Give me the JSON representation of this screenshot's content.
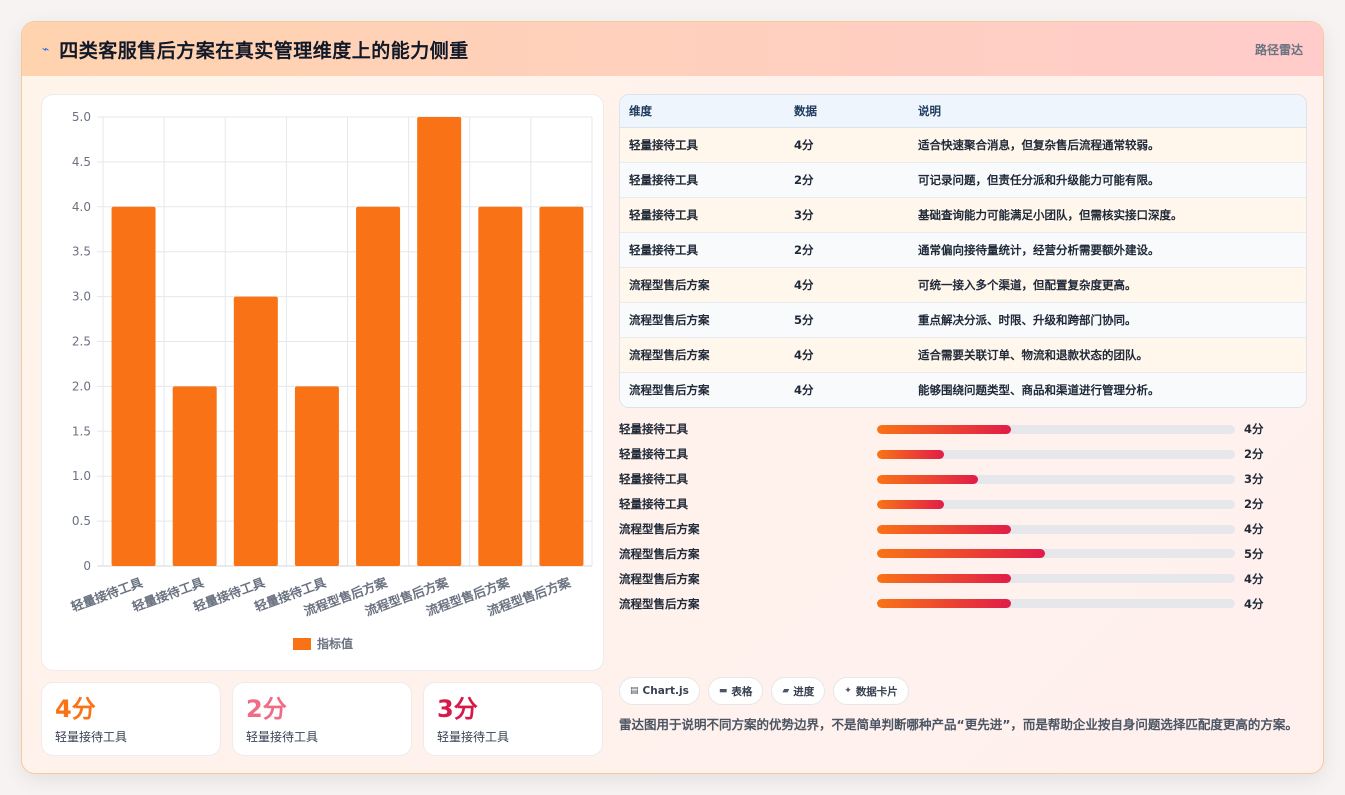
{
  "header": {
    "icon": "pulse-icon",
    "title": "四类客服售后方案在真实管理维度上的能力侧重",
    "right_label": "路径雷达"
  },
  "chart_data": {
    "type": "bar",
    "categories": [
      "轻量接待工具",
      "轻量接待工具",
      "轻量接待工具",
      "轻量接待工具",
      "流程型售后方案",
      "流程型售后方案",
      "流程型售后方案",
      "流程型售后方案"
    ],
    "series": [
      {
        "name": "指标值",
        "values": [
          4,
          2,
          3,
          2,
          4,
          5,
          4,
          4
        ],
        "color": "#f97316"
      }
    ],
    "yticks": [
      "0",
      "0.5",
      "1.0",
      "1.5",
      "2.0",
      "2.5",
      "3.0",
      "3.5",
      "4.0",
      "4.5",
      "5.0"
    ],
    "ylim": [
      0,
      5
    ],
    "grid": true,
    "legend": "bottom"
  },
  "table": {
    "headers": [
      "维度",
      "数据",
      "说明"
    ],
    "rows": [
      [
        "轻量接待工具",
        "4分",
        "适合快速聚合消息，但复杂售后流程通常较弱。"
      ],
      [
        "轻量接待工具",
        "2分",
        "可记录问题，但责任分派和升级能力可能有限。"
      ],
      [
        "轻量接待工具",
        "3分",
        "基础查询能力可能满足小团队，但需核实接口深度。"
      ],
      [
        "轻量接待工具",
        "2分",
        "通常偏向接待量统计，经营分析需要额外建设。"
      ],
      [
        "流程型售后方案",
        "4分",
        "可统一接入多个渠道，但配置复杂度更高。"
      ],
      [
        "流程型售后方案",
        "5分",
        "重点解决分派、时限、升级和跨部门协同。"
      ],
      [
        "流程型售后方案",
        "4分",
        "适合需要关联订单、物流和退款状态的团队。"
      ],
      [
        "流程型售后方案",
        "4分",
        "能够围绕问题类型、商品和渠道进行管理分析。"
      ]
    ]
  },
  "progress": [
    {
      "label": "轻量接待工具",
      "value_text": "4分",
      "fraction": 0.375
    },
    {
      "label": "轻量接待工具",
      "value_text": "2分",
      "fraction": 0.1875
    },
    {
      "label": "轻量接待工具",
      "value_text": "3分",
      "fraction": 0.28125
    },
    {
      "label": "轻量接待工具",
      "value_text": "2分",
      "fraction": 0.1875
    },
    {
      "label": "流程型售后方案",
      "value_text": "4分",
      "fraction": 0.375
    },
    {
      "label": "流程型售后方案",
      "value_text": "5分",
      "fraction": 0.46875
    },
    {
      "label": "流程型售后方案",
      "value_text": "4分",
      "fraction": 0.375
    },
    {
      "label": "流程型售后方案",
      "value_text": "4分",
      "fraction": 0.375
    }
  ],
  "stats": [
    {
      "value": "4分",
      "label": "轻量接待工具",
      "color": "#f97316"
    },
    {
      "value": "2分",
      "label": "轻量接待工具",
      "color": "#f06b85"
    },
    {
      "value": "3分",
      "label": "轻量接待工具",
      "color": "#d6184a"
    }
  ],
  "tags": [
    {
      "icon": "chart-icon",
      "glyph": "▤",
      "label": "Chart.js"
    },
    {
      "icon": "table-icon",
      "glyph": "▬",
      "label": "表格"
    },
    {
      "icon": "progress-icon",
      "glyph": "▰",
      "label": "进度"
    },
    {
      "icon": "card-icon",
      "glyph": "✦",
      "label": "数据卡片"
    }
  ],
  "note": "雷达图用于说明不同方案的优势边界，不是简单判断哪种产品“更先进”，而是帮助企业按自身问题选择匹配度更高的方案。"
}
